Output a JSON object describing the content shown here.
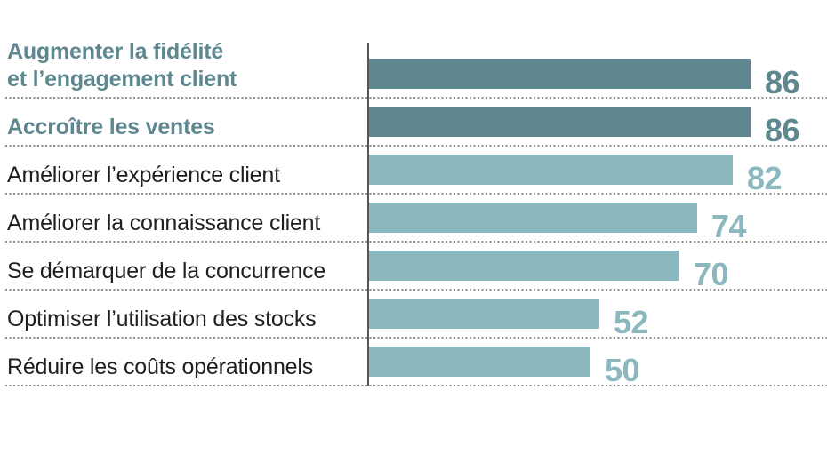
{
  "chart_data": {
    "type": "bar",
    "orientation": "horizontal",
    "categories": [
      [
        "Augmenter la fidélité",
        "et l’engagement client"
      ],
      [
        "Accroître les ventes"
      ],
      [
        "Améliorer l’expérience client"
      ],
      [
        "Améliorer la connaissance client"
      ],
      [
        "Se démarquer de la concurrence"
      ],
      [
        "Optimiser l’utilisation des stocks"
      ],
      [
        "Réduire les coûts opérationnels"
      ]
    ],
    "values": [
      86,
      86,
      82,
      74,
      70,
      52,
      50
    ],
    "highlighted": [
      true,
      true,
      false,
      false,
      false,
      false,
      false
    ],
    "xlim": [
      0,
      100
    ],
    "grid": false,
    "legend": "none",
    "colors": {
      "highlight_bar": "#5e8790",
      "highlight_value": "#5e8790",
      "highlight_label": "#5e8790",
      "regular_bar": "#8ab8be",
      "regular_value": "#8ab8be",
      "regular_label": "#1f1f1f"
    }
  }
}
